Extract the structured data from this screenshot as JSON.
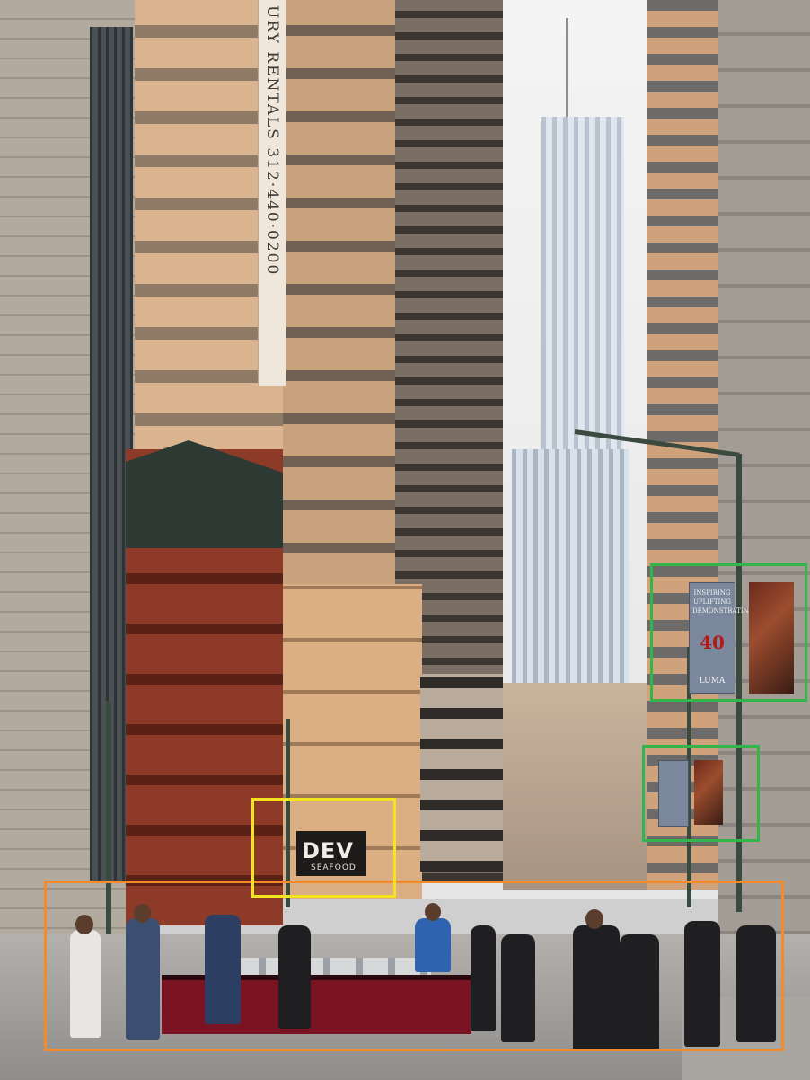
{
  "image": {
    "subject": "Urban street scene",
    "colors": {
      "box_orange": "#f58a2a",
      "box_yellow": "#f2e41f",
      "box_green": "#33b54a"
    }
  },
  "signs": {
    "vertical_sign": "URY RENTALS 312·440·0200",
    "restaurant_sign": "DEV",
    "restaurant_sub": "SEAFOOD",
    "banner_top": "INSPIRING\nUPLIFTING\nDEMONSTRATING",
    "banner_number": "40",
    "banner_bottom": "LUMA"
  },
  "annotations": [
    {
      "id": "box-people",
      "color": "#f58a2a"
    },
    {
      "id": "box-restaurant-sign",
      "color": "#f2e41f"
    },
    {
      "id": "box-banner-upper",
      "color": "#33b54a"
    },
    {
      "id": "box-banner-lower",
      "color": "#33b54a"
    }
  ]
}
